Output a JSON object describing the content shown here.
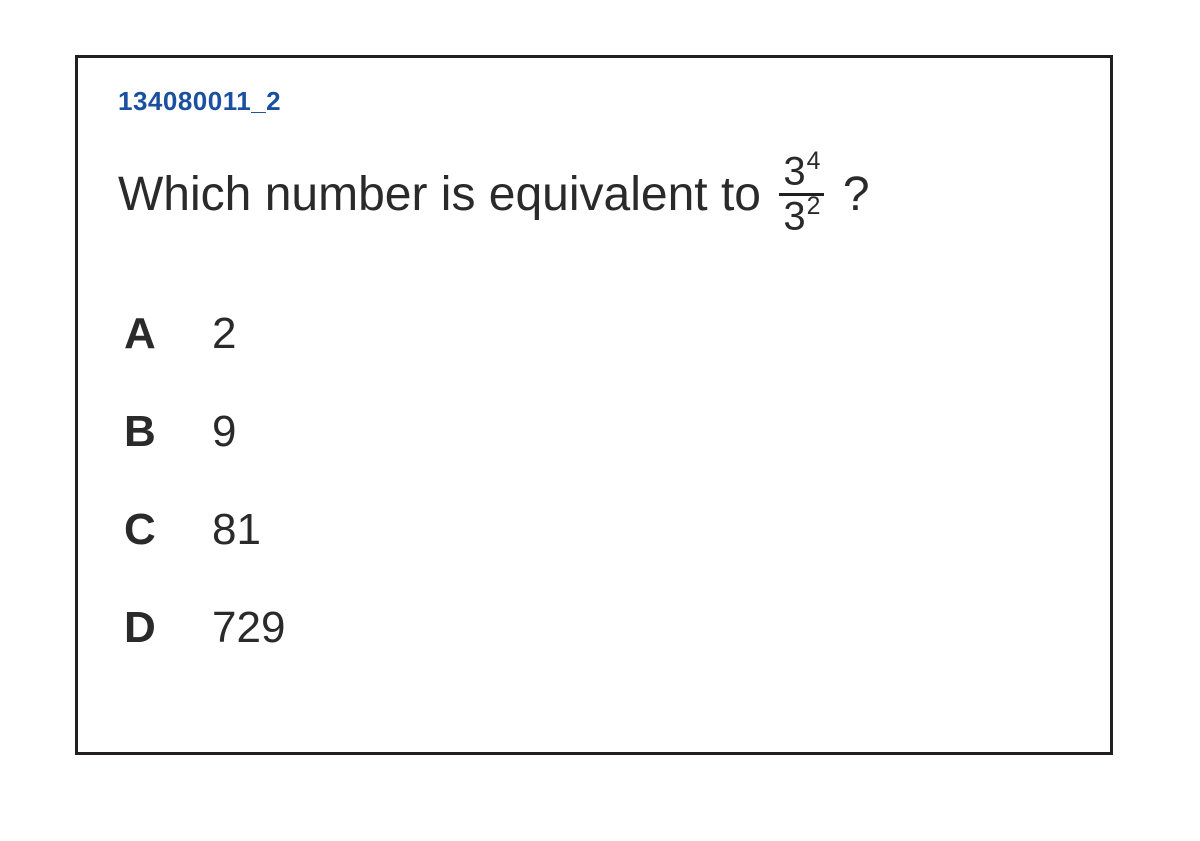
{
  "card": {
    "border_color": "#231f20",
    "background_color": "#ffffff"
  },
  "question": {
    "id": "134080011_2",
    "id_color": "#1b4fa0",
    "stem_prefix": "Which number is equivalent to",
    "stem_suffix": "?",
    "fraction": {
      "numerator_base": "3",
      "numerator_exp": "4",
      "denominator_base": "3",
      "denominator_exp": "2"
    }
  },
  "choices": [
    {
      "letter": "A",
      "value": "2"
    },
    {
      "letter": "B",
      "value": "9"
    },
    {
      "letter": "C",
      "value": "81"
    },
    {
      "letter": "D",
      "value": "729"
    }
  ]
}
